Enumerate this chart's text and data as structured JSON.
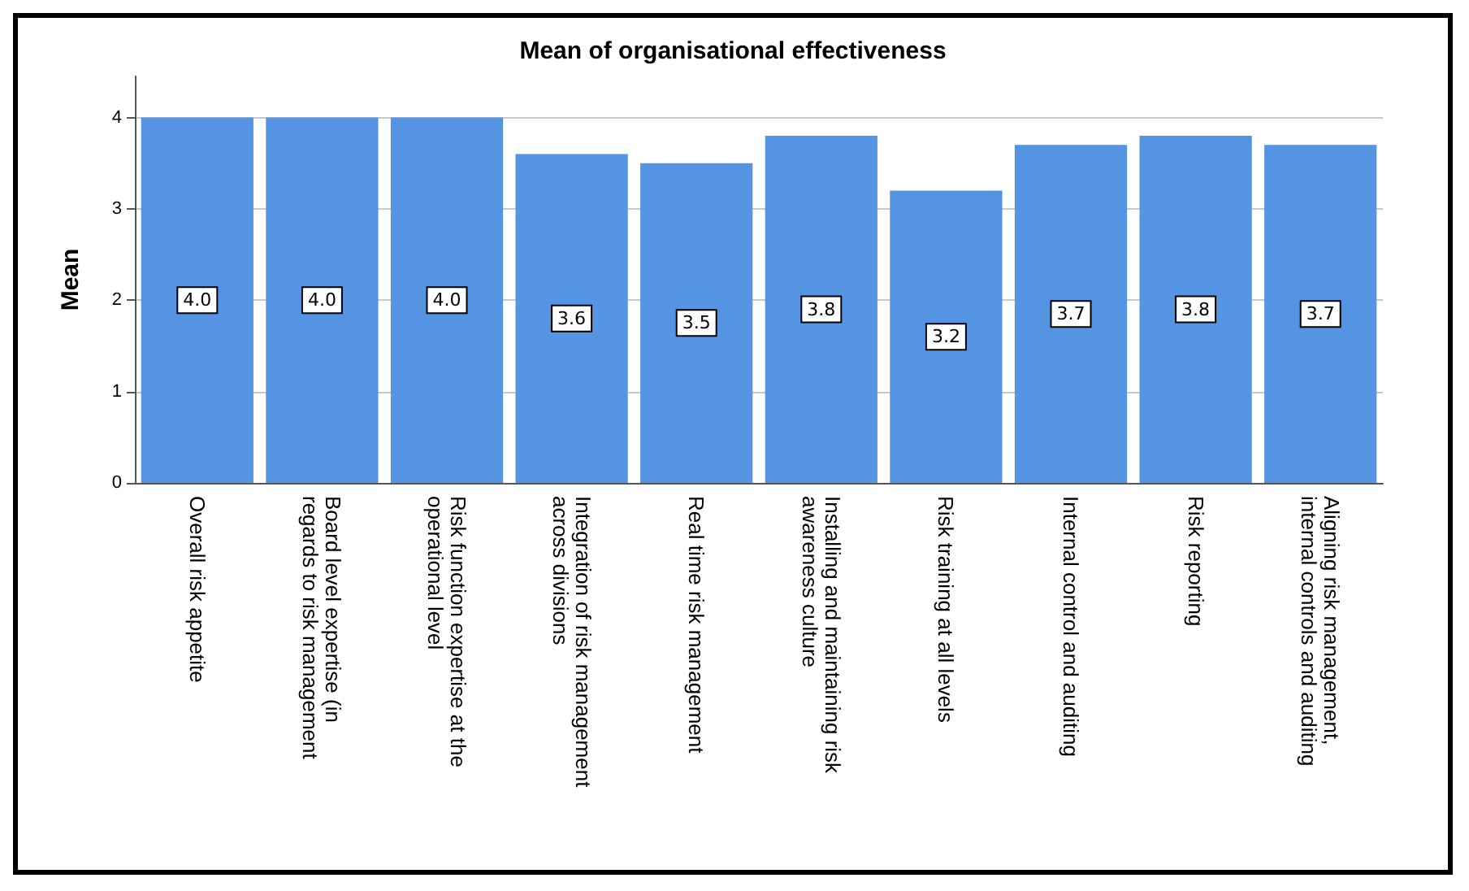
{
  "chart_data": {
    "type": "bar",
    "title": "Mean of organisational effectiveness",
    "ylabel": "Mean",
    "categories": [
      "Overall risk appetite",
      "Board level expertise (in regards to risk management",
      "Risk function expertise at the operational level",
      "Integration of risk management across divisions",
      "Real time risk management",
      "Installing and maintaining risk awareness culture",
      "Risk training at all levels",
      "Internal control and auditing",
      "Risk reporting",
      "Aligning risk management, internal controls and auditing"
    ],
    "values": [
      4.0,
      4.0,
      4.0,
      3.6,
      3.5,
      3.8,
      3.2,
      3.7,
      3.8,
      3.7
    ],
    "value_labels": [
      "4.0",
      "4.0",
      "4.0",
      "3.6",
      "3.5",
      "3.8",
      "3.2",
      "3.7",
      "3.8",
      "3.7"
    ],
    "color": "#5594e2",
    "ylim": [
      0,
      4.45
    ],
    "yticks": [
      0,
      1,
      2,
      3,
      4
    ],
    "grid": "y"
  }
}
